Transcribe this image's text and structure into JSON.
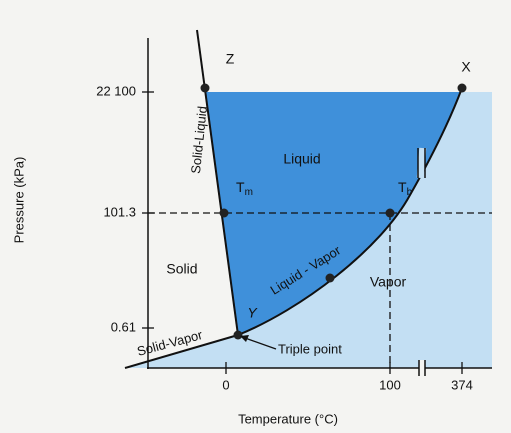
{
  "axes": {
    "y_label": "Pressure (kPa)",
    "x_label": "Temperature (°C)",
    "y_ticks": [
      "22 100",
      "101.3",
      "0.61"
    ],
    "x_ticks": [
      "0",
      "100",
      "374"
    ]
  },
  "points": {
    "z": "Z",
    "x": "X",
    "y": "Y",
    "tm": {
      "base": "T",
      "sub": "m"
    },
    "tb": {
      "base": "T",
      "sub": "b"
    }
  },
  "regions": {
    "liquid": "Liquid",
    "solid": "Solid",
    "vapor": "Vapor"
  },
  "curves": {
    "solid_liquid": "Solid-Liquid",
    "liquid_vapor": "Liquid - Vapor",
    "solid_vapor": "Solid-Vapor"
  },
  "annotation": "Triple point"
}
